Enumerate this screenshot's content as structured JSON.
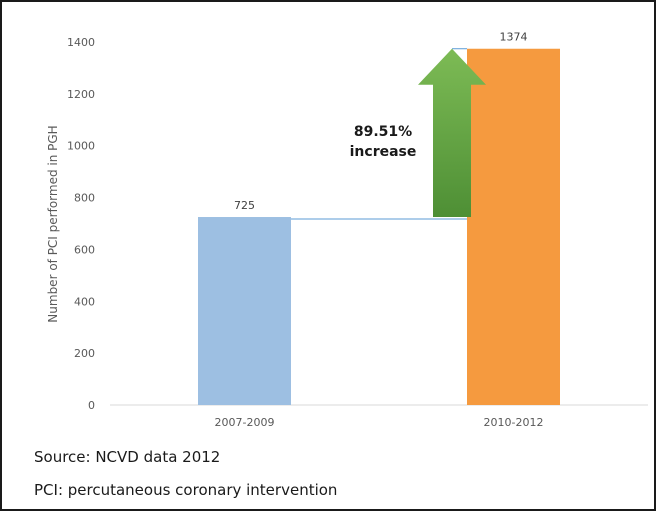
{
  "chart_data": {
    "type": "bar",
    "categories": [
      "2007-2009",
      "2010-2012"
    ],
    "values": [
      725,
      1374
    ],
    "data_labels": [
      "725",
      "1374"
    ],
    "colors": [
      "#9dbfe2",
      "#f59a3f"
    ],
    "ylabel": "Number of PCI performed in PGH",
    "ylim": [
      0,
      1400
    ],
    "yticks": [
      0,
      200,
      400,
      600,
      800,
      1000,
      1200,
      1400
    ],
    "grid": false,
    "annotation": {
      "line1": "89.51%",
      "line2": "increase",
      "arrow_color": "#6aac46"
    }
  },
  "captions": {
    "source": "Source: NCVD data 2012",
    "definition": "PCI: percutaneous coronary intervention"
  }
}
